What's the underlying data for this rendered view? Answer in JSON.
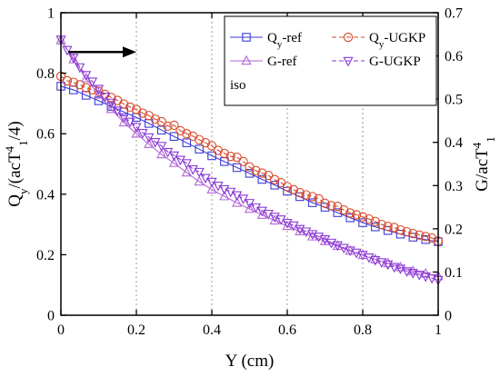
{
  "chart_data": {
    "type": "line",
    "xlabel": "Y (cm)",
    "ylabel_left": {
      "main": "Q",
      "sub": "y",
      "rest1": "/(acT",
      "sup": "4",
      "sub2": "1",
      "rest2": "/4)"
    },
    "ylabel_right": {
      "main": "G/acT",
      "sup": "4",
      "sub": "1"
    },
    "xlim": [
      0,
      1
    ],
    "ylim_left": [
      0,
      1
    ],
    "ylim_right": [
      0,
      0.7
    ],
    "xticks": [
      0,
      0.2,
      0.4,
      0.6,
      0.8,
      1
    ],
    "xtick_labels": [
      "0",
      "0.2",
      "0.4",
      "0.6",
      "0.8",
      "1"
    ],
    "yticks_left": [
      0,
      0.2,
      0.4,
      0.6,
      0.8,
      1
    ],
    "ytick_labels_left": [
      "0",
      "0.2",
      "0.4",
      "0.6",
      "0.8",
      "1"
    ],
    "yticks_right": [
      0,
      0.1,
      0.2,
      0.3,
      0.4,
      0.5,
      0.6,
      0.7
    ],
    "ytick_labels_right": [
      "0",
      "0.1",
      "0.2",
      "0.3",
      "0.4",
      "0.5",
      "0.6",
      "0.7"
    ],
    "grid": "vertical dotted",
    "legend_placement": "top-right",
    "annotation": "iso",
    "arrow": {
      "direction": "right",
      "x_from": 0.02,
      "x_to": 0.2,
      "y_left": 0.87
    },
    "series": [
      {
        "name": "Q",
        "name_sub": "y",
        "name_rest": "-ref",
        "axis": "left",
        "color": "#3b3bd6",
        "marker": "square",
        "line": "solid",
        "x": [
          0.0,
          0.0333,
          0.0667,
          0.1,
          0.1333,
          0.1667,
          0.2,
          0.2333,
          0.2667,
          0.3,
          0.3333,
          0.3667,
          0.4,
          0.4333,
          0.4667,
          0.5,
          0.5333,
          0.5667,
          0.6,
          0.6333,
          0.6667,
          0.7,
          0.7333,
          0.7667,
          0.8,
          0.8333,
          0.8667,
          0.9,
          0.9333,
          0.9667,
          1.0
        ],
        "values": [
          0.757,
          0.745,
          0.727,
          0.709,
          0.69,
          0.672,
          0.654,
          0.634,
          0.612,
          0.591,
          0.57,
          0.549,
          0.527,
          0.508,
          0.488,
          0.469,
          0.449,
          0.43,
          0.41,
          0.392,
          0.372,
          0.357,
          0.339,
          0.322,
          0.306,
          0.292,
          0.28,
          0.268,
          0.258,
          0.25,
          0.243
        ]
      },
      {
        "name": "Q",
        "name_sub": "y",
        "name_rest": "-UGKP",
        "axis": "left",
        "color": "#d94a2a",
        "marker": "circle",
        "line": "dashed",
        "x": [
          0.0,
          0.0167,
          0.0333,
          0.05,
          0.0667,
          0.0833,
          0.1,
          0.1167,
          0.1333,
          0.15,
          0.1667,
          0.1833,
          0.2,
          0.2167,
          0.2333,
          0.25,
          0.2667,
          0.2833,
          0.3,
          0.3167,
          0.3333,
          0.35,
          0.3667,
          0.3833,
          0.4,
          0.4167,
          0.4333,
          0.45,
          0.4667,
          0.4833,
          0.5,
          0.5167,
          0.5333,
          0.55,
          0.5667,
          0.5833,
          0.6,
          0.6167,
          0.6333,
          0.65,
          0.6667,
          0.6833,
          0.7,
          0.7167,
          0.7333,
          0.75,
          0.7667,
          0.7833,
          0.8,
          0.8167,
          0.8333,
          0.85,
          0.8667,
          0.8833,
          0.9,
          0.9167,
          0.9333,
          0.95,
          0.9667,
          0.9833,
          1.0
        ],
        "values": [
          0.79,
          0.775,
          0.77,
          0.762,
          0.752,
          0.745,
          0.74,
          0.73,
          0.72,
          0.71,
          0.698,
          0.688,
          0.68,
          0.668,
          0.66,
          0.648,
          0.64,
          0.625,
          0.628,
          0.61,
          0.6,
          0.592,
          0.58,
          0.57,
          0.56,
          0.545,
          0.535,
          0.525,
          0.522,
          0.508,
          0.49,
          0.478,
          0.47,
          0.462,
          0.448,
          0.438,
          0.425,
          0.415,
          0.405,
          0.398,
          0.392,
          0.385,
          0.37,
          0.362,
          0.36,
          0.348,
          0.338,
          0.332,
          0.325,
          0.318,
          0.31,
          0.3,
          0.294,
          0.29,
          0.282,
          0.276,
          0.27,
          0.265,
          0.26,
          0.255,
          0.245
        ]
      },
      {
        "name": "G-ref",
        "axis": "right",
        "color": "#b266d6",
        "marker": "triangle-up",
        "line": "solid",
        "x": [
          0.0,
          0.0333,
          0.0667,
          0.1,
          0.1333,
          0.1667,
          0.2,
          0.2333,
          0.2667,
          0.3,
          0.3333,
          0.3667,
          0.4,
          0.4333,
          0.4667,
          0.5,
          0.5333,
          0.5667,
          0.6,
          0.6333,
          0.6667,
          0.7,
          0.7333,
          0.7667,
          0.8,
          0.8333,
          0.8667,
          0.9,
          0.9333,
          0.9667,
          1.0
        ],
        "values": [
          0.636,
          0.592,
          0.548,
          0.51,
          0.477,
          0.446,
          0.42,
          0.396,
          0.372,
          0.352,
          0.33,
          0.309,
          0.291,
          0.275,
          0.26,
          0.246,
          0.232,
          0.219,
          0.206,
          0.194,
          0.182,
          0.171,
          0.16,
          0.149,
          0.139,
          0.129,
          0.12,
          0.111,
          0.102,
          0.096,
          0.09
        ]
      },
      {
        "name": "G-UGKP",
        "axis": "right",
        "color": "#8a3ad6",
        "marker": "triangle-down",
        "line": "dashed",
        "x": [
          0.0,
          0.0167,
          0.0333,
          0.05,
          0.0667,
          0.0833,
          0.1,
          0.1167,
          0.1333,
          0.15,
          0.1667,
          0.1833,
          0.2,
          0.2167,
          0.2333,
          0.25,
          0.2667,
          0.2833,
          0.3,
          0.3167,
          0.3333,
          0.35,
          0.3667,
          0.3833,
          0.4,
          0.4167,
          0.4333,
          0.45,
          0.4667,
          0.4833,
          0.5,
          0.5167,
          0.5333,
          0.55,
          0.5667,
          0.5833,
          0.6,
          0.6167,
          0.6333,
          0.65,
          0.6667,
          0.6833,
          0.7,
          0.7167,
          0.7333,
          0.75,
          0.7667,
          0.7833,
          0.8,
          0.8167,
          0.8333,
          0.85,
          0.8667,
          0.8833,
          0.9,
          0.9167,
          0.9333,
          0.95,
          0.9667,
          0.9833,
          1.0
        ],
        "values": [
          0.638,
          0.614,
          0.596,
          0.574,
          0.556,
          0.541,
          0.524,
          0.506,
          0.492,
          0.474,
          0.458,
          0.448,
          0.436,
          0.422,
          0.412,
          0.401,
          0.392,
          0.378,
          0.37,
          0.36,
          0.352,
          0.338,
          0.332,
          0.318,
          0.309,
          0.3,
          0.292,
          0.286,
          0.278,
          0.27,
          0.26,
          0.25,
          0.242,
          0.235,
          0.228,
          0.222,
          0.214,
          0.208,
          0.2,
          0.194,
          0.188,
          0.182,
          0.176,
          0.168,
          0.162,
          0.156,
          0.15,
          0.145,
          0.14,
          0.134,
          0.128,
          0.123,
          0.118,
          0.112,
          0.108,
          0.102,
          0.098,
          0.094,
          0.09,
          0.086,
          0.082
        ]
      }
    ]
  }
}
